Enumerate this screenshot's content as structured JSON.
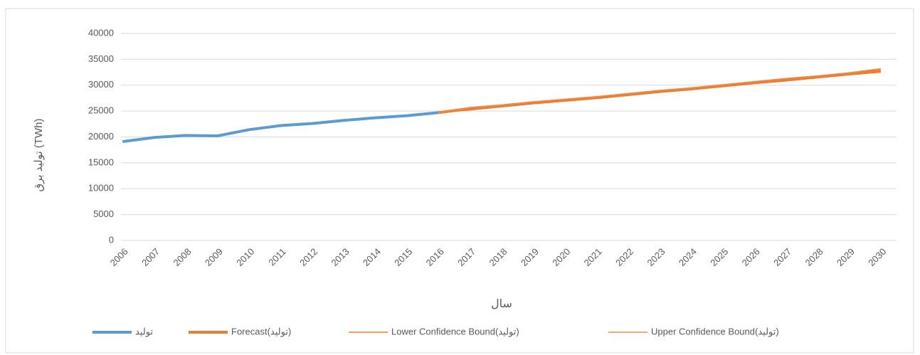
{
  "chart_data": {
    "type": "line",
    "y_label": "تولید برق (TWh)",
    "x_label": "سال",
    "categories": [
      "2006",
      "2007",
      "2008",
      "2009",
      "2010",
      "2011",
      "2012",
      "2013",
      "2014",
      "2015",
      "2016",
      "2017",
      "2018",
      "2019",
      "2020",
      "2021",
      "2022",
      "2023",
      "2024",
      "2025",
      "2026",
      "2027",
      "2028",
      "2029",
      "2030"
    ],
    "series": [
      {
        "name": "تولید",
        "color": "#5b9bd5",
        "width": 4,
        "values": [
          19100,
          19900,
          20300,
          20200,
          21400,
          22200,
          22600,
          23200,
          23700,
          24100,
          24700,
          null,
          null,
          null,
          null,
          null,
          null,
          null,
          null,
          null,
          null,
          null,
          null,
          null,
          null
        ]
      },
      {
        "name": "Forecast(تولید)",
        "color": "#ed7d31",
        "width": 4,
        "values": [
          null,
          null,
          null,
          null,
          null,
          null,
          null,
          null,
          null,
          null,
          24700,
          25500,
          26000,
          26600,
          27100,
          27600,
          28200,
          28800,
          29300,
          29900,
          30500,
          31100,
          31600,
          32200,
          32800
        ]
      },
      {
        "name": "Lower Confidence Bound(تولید)",
        "color": "#ed7d31",
        "width": 1.5,
        "values": [
          null,
          null,
          null,
          null,
          null,
          null,
          null,
          null,
          null,
          null,
          24700,
          25200,
          25800,
          26400,
          26900,
          27400,
          28000,
          28600,
          29100,
          29700,
          30300,
          30800,
          31400,
          32000,
          32500
        ]
      },
      {
        "name": "Upper Confidence Bound(تولید)",
        "color": "#f08c4a",
        "width": 1.5,
        "values": [
          null,
          null,
          null,
          null,
          null,
          null,
          null,
          null,
          null,
          null,
          24700,
          25700,
          26200,
          26800,
          27300,
          27800,
          28400,
          29000,
          29500,
          30100,
          30700,
          31300,
          31800,
          32400,
          33200
        ]
      }
    ],
    "ylim": [
      0,
      40000
    ],
    "yticks": [
      0,
      5000,
      10000,
      15000,
      20000,
      25000,
      30000,
      35000,
      40000
    ],
    "grid": true
  }
}
